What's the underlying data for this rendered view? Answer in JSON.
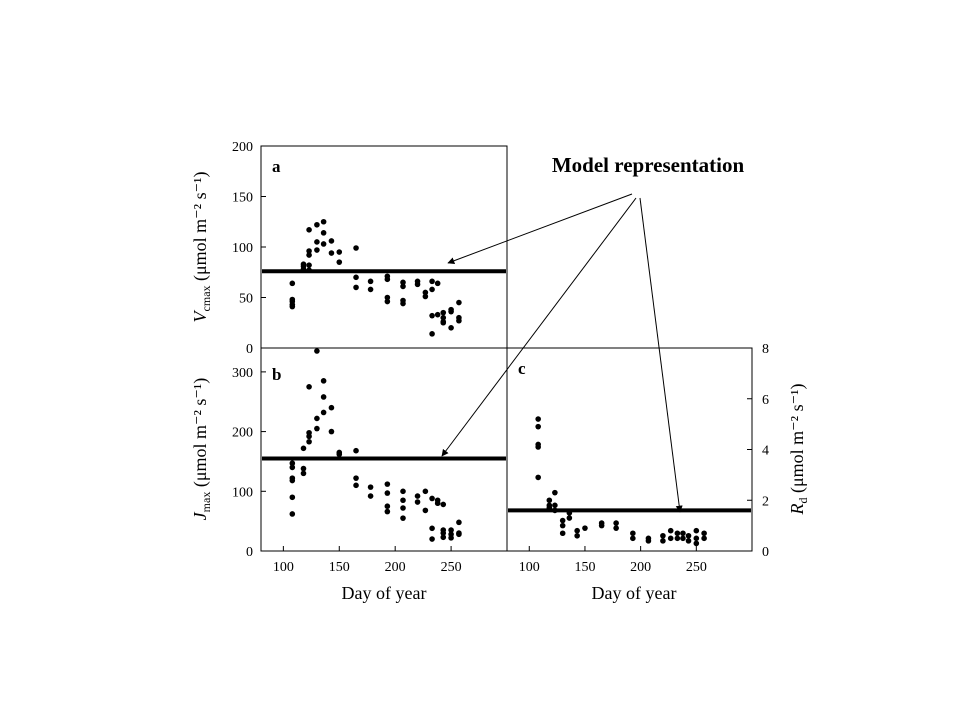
{
  "annotation": "Model representation",
  "chart_data": [
    {
      "panel": "a",
      "type": "scatter",
      "xlabel": "",
      "ylabel": {
        "main": "V",
        "sub": "cmax",
        "unit": " (μmol m⁻² s⁻¹)"
      },
      "xlim": [
        80,
        300
      ],
      "ylim": [
        0,
        200
      ],
      "yticks": [
        0,
        50,
        100,
        150,
        200
      ],
      "model_line": 76,
      "points": [
        [
          108,
          41
        ],
        [
          108,
          43
        ],
        [
          108,
          46
        ],
        [
          108,
          48
        ],
        [
          108,
          64
        ],
        [
          118,
          78
        ],
        [
          118,
          81
        ],
        [
          118,
          83
        ],
        [
          123,
          82
        ],
        [
          123,
          77
        ],
        [
          123,
          92
        ],
        [
          123,
          96
        ],
        [
          123,
          117
        ],
        [
          130,
          97
        ],
        [
          130,
          105
        ],
        [
          130,
          122
        ],
        [
          136,
          125
        ],
        [
          136,
          114
        ],
        [
          136,
          103
        ],
        [
          143,
          106
        ],
        [
          143,
          94
        ],
        [
          150,
          95
        ],
        [
          150,
          85
        ],
        [
          165,
          99
        ],
        [
          165,
          70
        ],
        [
          165,
          60
        ],
        [
          178,
          66
        ],
        [
          178,
          58
        ],
        [
          193,
          71
        ],
        [
          193,
          68
        ],
        [
          193,
          50
        ],
        [
          193,
          46
        ],
        [
          207,
          65
        ],
        [
          207,
          47
        ],
        [
          207,
          44
        ],
        [
          207,
          61
        ],
        [
          220,
          63
        ],
        [
          220,
          66
        ],
        [
          227,
          55
        ],
        [
          227,
          51
        ],
        [
          233,
          58
        ],
        [
          233,
          66
        ],
        [
          233,
          14
        ],
        [
          233,
          32
        ],
        [
          238,
          33
        ],
        [
          238,
          64
        ],
        [
          243,
          30
        ],
        [
          243,
          25
        ],
        [
          243,
          35
        ],
        [
          243,
          26
        ],
        [
          250,
          36
        ],
        [
          250,
          20
        ],
        [
          250,
          38
        ],
        [
          257,
          45
        ],
        [
          257,
          30
        ],
        [
          257,
          27
        ]
      ]
    },
    {
      "panel": "b",
      "type": "scatter",
      "xlabel": "Day of year",
      "ylabel": {
        "main": "J",
        "sub": "max",
        "unit": " (μmol m⁻² s⁻¹)"
      },
      "xlim": [
        80,
        300
      ],
      "ylim": [
        0,
        340
      ],
      "xticks": [
        100,
        150,
        200,
        250
      ],
      "yticks": [
        0,
        100,
        200,
        300
      ],
      "model_line": 155,
      "points": [
        [
          108,
          62
        ],
        [
          108,
          90
        ],
        [
          108,
          118
        ],
        [
          108,
          122
        ],
        [
          108,
          140
        ],
        [
          108,
          147
        ],
        [
          118,
          130
        ],
        [
          118,
          138
        ],
        [
          118,
          172
        ],
        [
          123,
          183
        ],
        [
          123,
          192
        ],
        [
          123,
          198
        ],
        [
          123,
          275
        ],
        [
          130,
          205
        ],
        [
          130,
          222
        ],
        [
          130,
          340
        ],
        [
          136,
          285
        ],
        [
          136,
          258
        ],
        [
          136,
          232
        ],
        [
          143,
          240
        ],
        [
          143,
          200
        ],
        [
          150,
          165
        ],
        [
          150,
          162
        ],
        [
          165,
          168
        ],
        [
          165,
          122
        ],
        [
          165,
          110
        ],
        [
          178,
          107
        ],
        [
          178,
          92
        ],
        [
          193,
          112
        ],
        [
          193,
          97
        ],
        [
          193,
          75
        ],
        [
          193,
          66
        ],
        [
          207,
          100
        ],
        [
          207,
          72
        ],
        [
          207,
          55
        ],
        [
          207,
          85
        ],
        [
          220,
          82
        ],
        [
          220,
          92
        ],
        [
          227,
          68
        ],
        [
          227,
          100
        ],
        [
          233,
          88
        ],
        [
          233,
          38
        ],
        [
          233,
          20
        ],
        [
          238,
          80
        ],
        [
          238,
          85
        ],
        [
          243,
          35
        ],
        [
          243,
          30
        ],
        [
          243,
          23
        ],
        [
          243,
          78
        ],
        [
          250,
          35
        ],
        [
          250,
          22
        ],
        [
          250,
          28
        ],
        [
          257,
          48
        ],
        [
          257,
          30
        ],
        [
          257,
          28
        ]
      ]
    },
    {
      "panel": "c",
      "type": "scatter",
      "xlabel": "Day of year",
      "ylabel": {
        "main": "R",
        "sub": "d",
        "unit": " (μmol m⁻² s⁻¹)"
      },
      "xlim": [
        80,
        300
      ],
      "ylim": [
        0,
        8
      ],
      "xticks": [
        100,
        150,
        200,
        250
      ],
      "yticks": [
        0,
        2,
        4,
        6,
        8
      ],
      "model_line": 1.6,
      "points": [
        [
          108,
          5.2
        ],
        [
          108,
          4.9
        ],
        [
          108,
          4.2
        ],
        [
          108,
          4.1
        ],
        [
          108,
          2.9
        ],
        [
          118,
          2.0
        ],
        [
          118,
          1.8
        ],
        [
          118,
          1.7
        ],
        [
          123,
          2.3
        ],
        [
          123,
          1.8
        ],
        [
          123,
          1.6
        ],
        [
          130,
          1.2
        ],
        [
          130,
          1.0
        ],
        [
          130,
          0.7
        ],
        [
          136,
          1.5
        ],
        [
          136,
          1.3
        ],
        [
          143,
          0.8
        ],
        [
          143,
          0.6
        ],
        [
          150,
          0.9
        ],
        [
          165,
          1.1
        ],
        [
          165,
          1.0
        ],
        [
          178,
          1.1
        ],
        [
          178,
          0.9
        ],
        [
          193,
          0.7
        ],
        [
          193,
          0.5
        ],
        [
          207,
          0.5
        ],
        [
          207,
          0.4
        ],
        [
          220,
          0.6
        ],
        [
          220,
          0.4
        ],
        [
          227,
          0.8
        ],
        [
          227,
          0.5
        ],
        [
          233,
          0.7
        ],
        [
          233,
          0.5
        ],
        [
          238,
          0.7
        ],
        [
          238,
          0.5
        ],
        [
          243,
          0.6
        ],
        [
          243,
          0.4
        ],
        [
          250,
          0.8
        ],
        [
          250,
          0.5
        ],
        [
          250,
          0.3
        ],
        [
          257,
          0.7
        ],
        [
          257,
          0.5
        ]
      ]
    }
  ]
}
